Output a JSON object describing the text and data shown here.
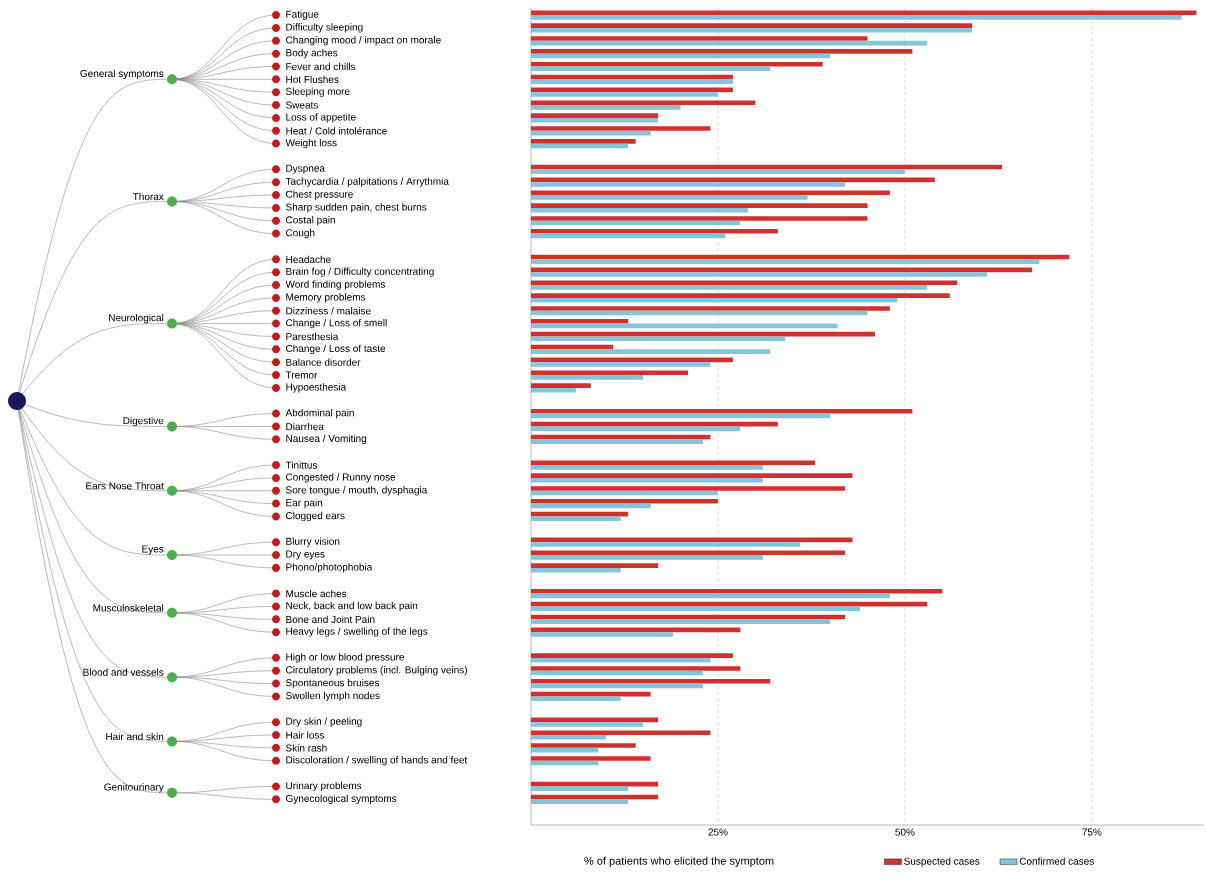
{
  "chart_data": {
    "type": "bar",
    "orientation": "horizontal",
    "categories": [
      "Fatigue",
      "Difficulty sleeping",
      "Changing mood / impact on morale",
      "Body aches",
      "Fever and chills",
      "Hot Flushes",
      "Sleeping more",
      "Sweats",
      "Loss of appetite",
      "Heat / Cold intolérance",
      "Weight loss",
      null,
      "Dyspnea",
      "Tachycardia / palpitations / Arrythmia",
      "Chest pressure",
      "Sharp sudden pain, chest burns",
      "Costal pain",
      "Cough",
      null,
      "Headache",
      "Brain fog / Difficulty concentrating",
      "Word finding problems",
      "Memory problems",
      "Dizziness / malaise",
      "Change / Loss of smell",
      "Paresthesia",
      "Change / Loss of taste",
      "Balance disorder",
      "Tremor",
      "Hypoesthesia",
      null,
      "Abdominal pain",
      "Diarrhea",
      "Nausea / Vomiting",
      null,
      "Tinittus",
      "Congested / Runny nose",
      "Sore tongue / mouth, dysphagia",
      "Ear pain",
      "Clogged ears",
      null,
      "Blurry vision",
      "Dry eyes",
      "Phono/photophobia",
      null,
      "Muscle aches",
      "Neck, back and low back pain",
      "Bone and Joint Pain",
      "Heavy legs / swelling of the legs",
      null,
      "High or low blood pressure",
      "Circulatory problems (incl. Bulging veins)",
      "Spontaneous bruises",
      "Swollen lymph nodes",
      null,
      "Dry skin / peeling",
      "Hair loss",
      "Skin rash",
      "Discoloration / swelling of hands and feet",
      null,
      "Urinary problems",
      "Gynecological symptoms"
    ],
    "series": [
      {
        "name": "Suspected cases",
        "color": "#d0312d",
        "values": [
          89,
          59,
          45,
          51,
          39,
          27,
          27,
          30,
          17,
          24,
          14,
          null,
          63,
          54,
          48,
          45,
          45,
          33,
          null,
          72,
          67,
          57,
          56,
          48,
          13,
          46,
          11,
          27,
          21,
          8,
          null,
          51,
          33,
          24,
          null,
          38,
          43,
          42,
          25,
          13,
          null,
          43,
          42,
          17,
          null,
          55,
          53,
          42,
          28,
          null,
          27,
          28,
          32,
          16,
          null,
          17,
          24,
          14,
          16,
          null,
          17,
          17
        ]
      },
      {
        "name": "Confirmed cases",
        "color": "#84c5dc",
        "values": [
          87,
          59,
          53,
          40,
          32,
          27,
          25,
          20,
          17,
          16,
          13,
          null,
          50,
          42,
          37,
          29,
          28,
          26,
          null,
          68,
          61,
          53,
          49,
          45,
          41,
          34,
          32,
          24,
          15,
          6,
          null,
          40,
          28,
          23,
          null,
          31,
          31,
          25,
          16,
          12,
          null,
          36,
          31,
          12,
          null,
          48,
          44,
          40,
          19,
          null,
          24,
          23,
          23,
          12,
          null,
          15,
          10,
          9,
          9,
          null,
          13,
          13
        ]
      }
    ],
    "xlim": [
      0,
      90
    ],
    "xticks": [
      {
        "value": 25,
        "label": "25%"
      },
      {
        "value": 50,
        "label": "50%"
      },
      {
        "value": 75,
        "label": "75%"
      }
    ],
    "xlabel": "% of patients who elicited the symptom",
    "grid": "x",
    "legend": "bottom",
    "annotations": [
      "General symptoms",
      "Thorax",
      "Neurological",
      "Digestive",
      "Ears Nose Throat",
      "Eyes",
      "Musculoskeletal",
      "Blood and vessels",
      "Hair and skin",
      "Genitourinary"
    ]
  }
}
